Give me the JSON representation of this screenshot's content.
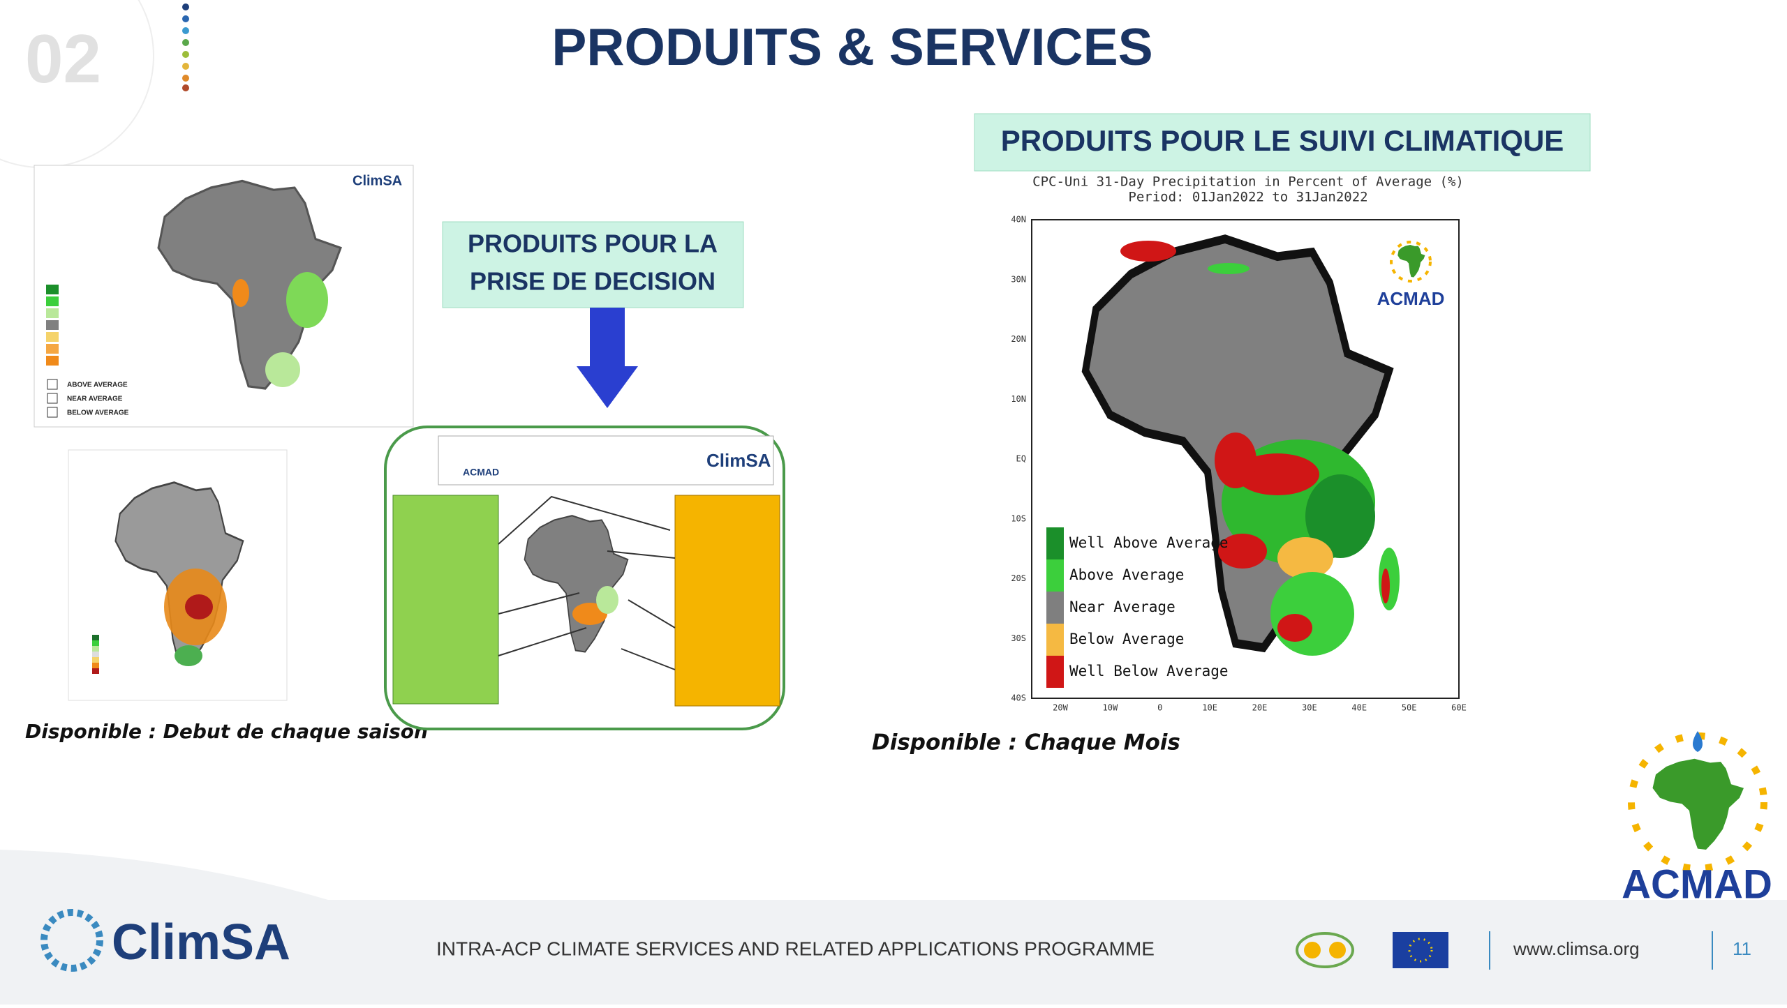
{
  "slide_number": "02",
  "title": "PRODUITS & SERVICES",
  "left_panel": {
    "map_logo": "ClimSA",
    "legend": [
      "ABOVE AVERAGE",
      "NEAR AVERAGE",
      "BELOW AVERAGE"
    ],
    "caption": "Disponible : Debut de chaque saison"
  },
  "middle_panel": {
    "heading": [
      "PRODUITS POUR LA",
      "PRISE DE DECISION"
    ],
    "brief_logo": "ClimSA",
    "brief_acmad": "ACMAD"
  },
  "right_panel": {
    "heading": "PRODUITS POUR LE SUIVI CLIMATIQUE",
    "map_title": [
      "CPC-Uni 31-Day Precipitation in Percent of Average (%)",
      "Period: 01Jan2022 to 31Jan2022"
    ],
    "lat_labels": [
      "40N",
      "30N",
      "20N",
      "10N",
      "EQ",
      "10S",
      "20S",
      "30S",
      "40S"
    ],
    "lon_labels": [
      "20W",
      "10W",
      "0",
      "10E",
      "20E",
      "30E",
      "40E",
      "50E",
      "60E"
    ],
    "legend": [
      {
        "label": "Well Above Average",
        "color": "#1b8f2a"
      },
      {
        "label": "Above Average",
        "color": "#3ccf3c"
      },
      {
        "label": "Near Average",
        "color": "#7f7f7f"
      },
      {
        "label": "Below Average",
        "color": "#f5b942"
      },
      {
        "label": "Well Below Average",
        "color": "#d01616"
      }
    ],
    "map_logo": "ACMAD",
    "caption": "Disponible : Chaque Mois"
  },
  "footer": {
    "logo": "ClimSA",
    "programme": "INTRA-ACP CLIMATE SERVICES AND RELATED APPLICATIONS PROGRAMME",
    "website": "www.climsa.org",
    "page": "11",
    "acmad": "ACMAD"
  }
}
